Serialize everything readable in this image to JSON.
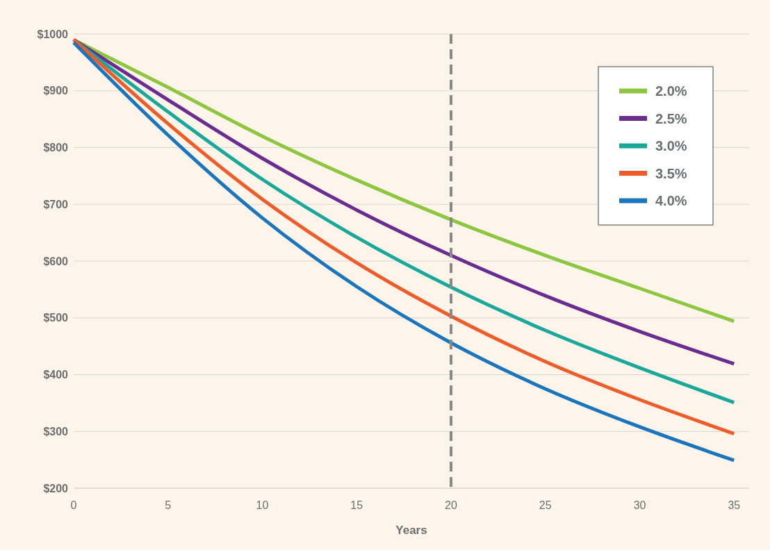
{
  "chart_data": {
    "type": "line",
    "xlabel": "Years",
    "x": [
      0,
      5,
      10,
      15,
      20,
      25,
      30,
      35
    ],
    "series": [
      {
        "name": "2.0%",
        "color": "#8dc63f",
        "values": [
          990,
          906,
          820,
          743,
          673,
          610,
          552,
          494
        ]
      },
      {
        "name": "2.5%",
        "color": "#6a2c91",
        "values": [
          990,
          884,
          781,
          690,
          610,
          539,
          476,
          419
        ]
      },
      {
        "name": "3.0%",
        "color": "#1aa89a",
        "values": [
          990,
          863,
          744,
          642,
          554,
          478,
          412,
          351
        ]
      },
      {
        "name": "3.5%",
        "color": "#f15a29",
        "values": [
          990,
          842,
          709,
          597,
          503,
          423,
          356,
          296
        ]
      },
      {
        "name": "4.0%",
        "color": "#1b75bc",
        "values": [
          985,
          822,
          676,
          555,
          456,
          375,
          308,
          249
        ]
      }
    ],
    "xlim": [
      0,
      35.8
    ],
    "xticks": [
      0,
      5,
      10,
      15,
      20,
      25,
      30,
      35
    ],
    "ylim": [
      200,
      1000
    ],
    "yticks": [
      {
        "value": 200,
        "label": "$200"
      },
      {
        "value": 300,
        "label": "$300"
      },
      {
        "value": 400,
        "label": "$400"
      },
      {
        "value": 500,
        "label": "$500"
      },
      {
        "value": 600,
        "label": "$600"
      },
      {
        "value": 700,
        "label": "$700"
      },
      {
        "value": 800,
        "label": "$800"
      },
      {
        "value": 900,
        "label": "$900"
      },
      {
        "value": 1000,
        "label": "$1000"
      }
    ],
    "grid": "y",
    "legend": "top right",
    "line_style": "solid",
    "marker": "none",
    "ref_lines": [
      {
        "axis": "x",
        "value": 20,
        "color": "#888888",
        "line_style": "dashed"
      }
    ]
  }
}
